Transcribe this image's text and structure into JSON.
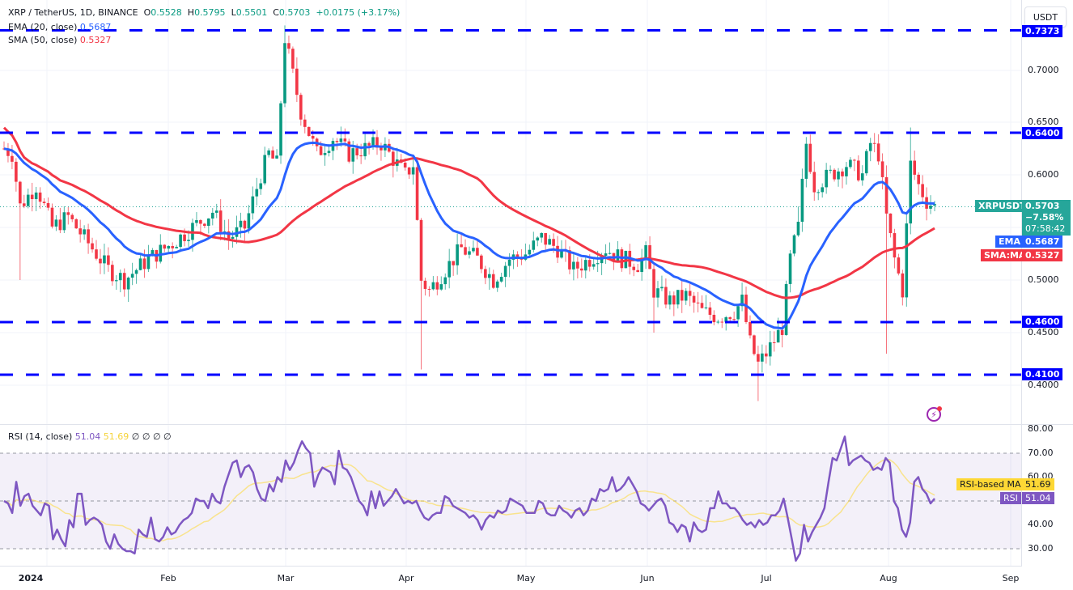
{
  "header": {
    "symbol": "XRP / TetherUS, 1D, BINANCE",
    "open_label": "O",
    "open": "0.5528",
    "high_label": "H",
    "high": "0.5795",
    "low_label": "L",
    "low": "0.5501",
    "close_label": "C",
    "close": "0.5703",
    "change": "+0.0175 (+3.17%)"
  },
  "indicators": {
    "ema": {
      "label": "EMA (20, close)",
      "value": "0.5687",
      "color": "#2962ff"
    },
    "sma": {
      "label": "SMA (50, close)",
      "value": "0.5327",
      "color": "#f23645"
    },
    "rsi": {
      "label": "RSI (14, close)",
      "value": "51.04",
      "ma_value": "51.69",
      "extras": "∅  ∅  ∅  ∅",
      "color": "#7e57c2",
      "ma_color": "#fdd835"
    }
  },
  "currency_button": "USDT",
  "price_axis": [
    "0.7000",
    "0.6500",
    "0.6000",
    "0.5000",
    "0.4500",
    "0.4000"
  ],
  "rsi_axis": [
    "80.00",
    "70.00",
    "60.00",
    "40.00",
    "30.00"
  ],
  "time_axis": [
    "2024",
    "Feb",
    "Mar",
    "Apr",
    "May",
    "Jun",
    "Jul",
    "Aug",
    "Sep"
  ],
  "horizontal_lines": [
    {
      "value": "0.7373",
      "color": "#0000ff"
    },
    {
      "value": "0.6400",
      "color": "#0000ff"
    },
    {
      "value": "0.4600",
      "color": "#0000ff"
    },
    {
      "value": "0.4100",
      "color": "#0000ff"
    }
  ],
  "tags": {
    "symbol": "XRPUSDT",
    "price": "0.5703",
    "pct": "−7.58%",
    "countdown": "07:58:42",
    "ema_label": "EMA",
    "ema_value": "0.5687",
    "sma_label": "SMA:MA",
    "sma_value": "0.5327",
    "rsi_ma_label": "RSI-based MA",
    "rsi_ma_value": "51.69",
    "rsi_label": "RSI",
    "rsi_value": "51.04"
  },
  "colors": {
    "up": "#089981",
    "down": "#f23645",
    "level": "#0000ff",
    "last_price": "#26a69a"
  },
  "chart_data": [
    {
      "type": "candlestick",
      "title": "XRP / TetherUS, 1D, BINANCE",
      "ylabel": "USDT",
      "ylim": [
        0.38,
        0.745
      ],
      "x_ticks": [
        "2024",
        "Feb",
        "Mar",
        "Apr",
        "May",
        "Jun",
        "Jul",
        "Aug",
        "Sep"
      ],
      "last_ohlc": {
        "open": 0.5528,
        "high": 0.5795,
        "low": 0.5501,
        "close": 0.5703
      },
      "horizontal_levels": [
        0.7373,
        0.64,
        0.46,
        0.41
      ],
      "key_points": [
        {
          "date": "2024-01-01",
          "price": 0.62
        },
        {
          "date": "2024-01-03",
          "price": 0.57,
          "note": "wick to ~0.50"
        },
        {
          "date": "2024-01-28",
          "price": 0.5
        },
        {
          "date": "2024-02-16",
          "price": 0.55
        },
        {
          "date": "2024-03-11",
          "price": 0.73,
          "note": "high ~0.74"
        },
        {
          "date": "2024-03-27",
          "price": 0.63
        },
        {
          "date": "2024-04-13",
          "price": 0.5,
          "note": "wick to ~0.42"
        },
        {
          "date": "2024-05-15",
          "price": 0.53
        },
        {
          "date": "2024-06-07",
          "price": 0.51
        },
        {
          "date": "2024-07-05",
          "price": 0.42,
          "note": "wick to ~0.385"
        },
        {
          "date": "2024-07-17",
          "price": 0.63
        },
        {
          "date": "2024-07-31",
          "price": 0.64
        },
        {
          "date": "2024-08-05",
          "price": 0.5,
          "note": "wick to ~0.43"
        },
        {
          "date": "2024-08-08",
          "price": 0.62
        },
        {
          "date": "2024-08-13",
          "price": 0.5703
        }
      ],
      "series": [
        {
          "name": "EMA (20, close)",
          "last": 0.5687
        },
        {
          "name": "SMA (50, close)",
          "last": 0.5327
        }
      ]
    },
    {
      "type": "line",
      "title": "RSI (14, close)",
      "ylim": [
        25,
        82
      ],
      "bands": [
        30,
        70
      ],
      "series": [
        {
          "name": "RSI",
          "last": 51.04,
          "values": [
            50,
            49,
            45,
            58,
            48,
            52,
            53,
            48,
            46,
            44,
            49,
            48,
            34,
            38,
            34,
            31,
            42,
            39,
            53,
            53,
            40,
            42,
            43,
            42,
            40,
            33,
            30,
            36,
            32,
            30,
            29,
            29,
            28,
            38,
            36,
            35,
            43,
            34,
            33,
            35,
            39,
            36,
            37,
            40,
            42,
            43,
            45,
            51,
            50,
            50,
            47,
            53,
            50,
            49,
            56,
            61,
            66,
            67,
            60,
            64,
            65,
            62,
            55,
            51,
            50,
            57,
            54,
            60,
            58,
            67,
            63,
            66,
            71,
            75,
            72,
            70,
            56,
            61,
            64,
            63,
            62,
            57,
            71,
            64,
            63,
            60,
            55,
            50,
            48,
            44,
            54,
            47,
            54,
            48,
            50,
            52,
            55,
            52,
            49,
            50,
            49,
            50,
            46,
            43,
            42,
            44,
            45,
            45,
            52,
            51,
            48,
            47,
            46,
            45,
            43,
            44,
            42,
            38,
            42,
            44,
            43,
            46,
            45,
            46,
            51,
            50,
            49,
            48,
            45,
            45,
            45,
            50,
            49,
            45,
            44,
            44,
            48,
            46,
            45,
            43,
            46,
            47,
            44,
            46,
            51,
            50,
            55,
            54,
            55,
            60,
            54,
            55,
            57,
            60,
            57,
            54,
            49,
            48,
            46,
            48,
            50,
            51,
            48,
            41,
            40,
            37,
            40,
            39,
            33,
            41,
            38,
            37,
            38,
            47,
            47,
            54,
            49,
            49,
            47,
            47,
            45,
            42,
            40,
            41,
            39,
            42,
            40,
            41,
            44,
            44,
            46,
            51,
            43,
            34,
            25,
            28,
            40,
            33,
            37,
            40,
            43,
            47,
            58,
            68,
            67,
            72,
            77,
            65,
            67,
            68,
            69,
            67,
            66,
            63,
            64,
            63,
            68,
            66,
            50,
            47,
            38,
            35,
            41,
            58,
            60,
            55,
            53,
            49,
            51
          ]
        },
        {
          "name": "RSI-based MA",
          "last": 51.69
        }
      ]
    }
  ]
}
